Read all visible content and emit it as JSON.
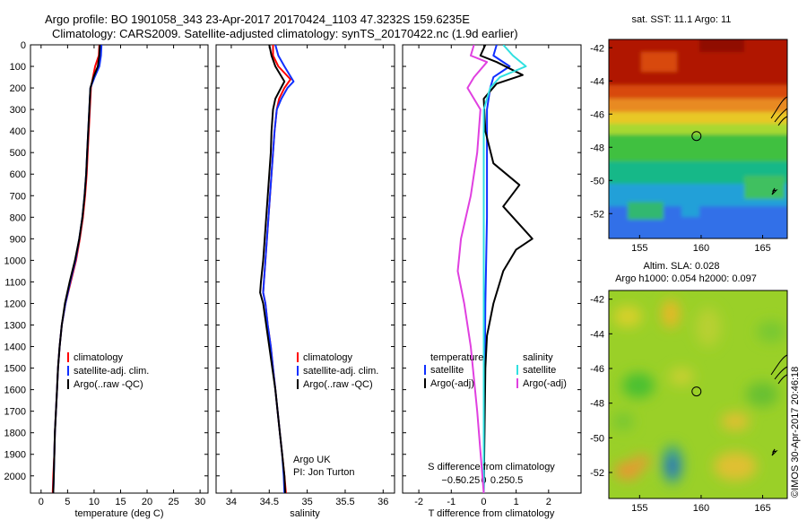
{
  "header": {
    "title_line1": "Argo profile: BO 1901058_343 23-Apr-2017 20170424_1103 47.3232S 159.6235E",
    "title_line2": "Climatology: CARS2009. Satellite-adjusted climatology: synTS_20170422.nc (1.9d earlier)"
  },
  "colors": {
    "climatology": "#ff0000",
    "satellite": "#1030ff",
    "argo": "#000000",
    "sat_salinity": "#30e0e0",
    "argo_salinity_adj": "#e040e0"
  },
  "depth_ticks": [
    0,
    100,
    200,
    300,
    400,
    500,
    600,
    700,
    800,
    900,
    1000,
    1100,
    1200,
    1300,
    1400,
    1500,
    1600,
    1700,
    1800,
    1900,
    2000
  ],
  "chart_data": [
    {
      "type": "line",
      "id": "temperature",
      "xlabel": "temperature (deg C)",
      "ylabel": "",
      "xlim": [
        -2,
        31.5
      ],
      "ylim": [
        0,
        2080
      ],
      "y_reversed": true,
      "xticks": [
        0,
        5,
        10,
        15,
        20,
        25,
        30
      ],
      "legend": {
        "position": "bottom-center",
        "entries": [
          "climatology",
          "satellite-adj. clim.",
          "Argo(..raw -QC)"
        ]
      },
      "series": [
        {
          "name": "climatology",
          "color_key": "climatology",
          "points": [
            [
              11,
              0
            ],
            [
              10.9,
              50
            ],
            [
              10.2,
              100
            ],
            [
              9.8,
              150
            ],
            [
              9.4,
              200
            ],
            [
              9.2,
              300
            ],
            [
              9.0,
              400
            ],
            [
              8.8,
              500
            ],
            [
              8.6,
              600
            ],
            [
              8.3,
              700
            ],
            [
              7.9,
              800
            ],
            [
              7.3,
              900
            ],
            [
              6.6,
              1000
            ],
            [
              5.6,
              1100
            ],
            [
              4.6,
              1200
            ],
            [
              3.9,
              1300
            ],
            [
              3.5,
              1400
            ],
            [
              3.2,
              1500
            ],
            [
              3.0,
              1600
            ],
            [
              2.8,
              1700
            ],
            [
              2.6,
              1800
            ],
            [
              2.5,
              1900
            ],
            [
              2.3,
              2000
            ],
            [
              2.2,
              2080
            ]
          ]
        },
        {
          "name": "satellite-adj. clim.",
          "color_key": "satellite",
          "points": [
            [
              11.4,
              0
            ],
            [
              11.3,
              50
            ],
            [
              11.0,
              100
            ],
            [
              10.1,
              150
            ],
            [
              9.3,
              200
            ],
            [
              9.1,
              300
            ],
            [
              8.9,
              400
            ],
            [
              8.7,
              500
            ],
            [
              8.5,
              600
            ],
            [
              8.2,
              700
            ],
            [
              7.8,
              800
            ],
            [
              7.2,
              900
            ],
            [
              6.5,
              1000
            ],
            [
              5.5,
              1100
            ],
            [
              4.6,
              1200
            ],
            [
              3.9,
              1300
            ],
            [
              3.5,
              1400
            ],
            [
              3.2,
              1500
            ],
            [
              3.0,
              1600
            ],
            [
              2.8,
              1700
            ],
            [
              2.6,
              1800
            ],
            [
              2.5,
              1900
            ],
            [
              2.4,
              2000
            ],
            [
              2.3,
              2080
            ]
          ]
        },
        {
          "name": "Argo(..raw -QC)",
          "color_key": "argo",
          "points": [
            [
              11.1,
              0
            ],
            [
              11.0,
              50
            ],
            [
              10.7,
              100
            ],
            [
              9.9,
              150
            ],
            [
              9.3,
              200
            ],
            [
              9.1,
              300
            ],
            [
              8.9,
              400
            ],
            [
              8.7,
              500
            ],
            [
              8.5,
              600
            ],
            [
              8.2,
              700
            ],
            [
              7.8,
              800
            ],
            [
              7.2,
              900
            ],
            [
              6.4,
              1000
            ],
            [
              5.4,
              1100
            ],
            [
              4.5,
              1200
            ],
            [
              3.9,
              1300
            ],
            [
              3.5,
              1400
            ],
            [
              3.2,
              1500
            ],
            [
              3.0,
              1600
            ],
            [
              2.8,
              1700
            ],
            [
              2.6,
              1800
            ],
            [
              2.5,
              1900
            ],
            [
              2.4,
              2000
            ],
            [
              2.3,
              2080
            ]
          ]
        }
      ]
    },
    {
      "type": "line",
      "id": "salinity",
      "xlabel": "salinity",
      "ylabel": "",
      "xlim": [
        33.8,
        36.15
      ],
      "ylim": [
        0,
        2080
      ],
      "y_reversed": true,
      "xticks": [
        34,
        34.5,
        35,
        35.5,
        36
      ],
      "legend": {
        "position": "bottom-center",
        "entries": [
          "climatology",
          "satellite-adj. clim.",
          "Argo(..raw -QC)"
        ]
      },
      "annotation_lines": [
        "Argo UK",
        "PI: Jon Turton"
      ],
      "series": [
        {
          "name": "climatology",
          "color_key": "climatology",
          "points": [
            [
              34.55,
              0
            ],
            [
              34.55,
              50
            ],
            [
              34.62,
              100
            ],
            [
              34.78,
              160
            ],
            [
              34.7,
              200
            ],
            [
              34.63,
              250
            ],
            [
              34.6,
              300
            ],
            [
              34.57,
              400
            ],
            [
              34.55,
              500
            ],
            [
              34.53,
              600
            ],
            [
              34.51,
              700
            ],
            [
              34.49,
              800
            ],
            [
              34.47,
              900
            ],
            [
              34.45,
              1000
            ],
            [
              34.43,
              1100
            ],
            [
              34.42,
              1150
            ],
            [
              34.45,
              1200
            ],
            [
              34.48,
              1300
            ],
            [
              34.52,
              1400
            ],
            [
              34.55,
              1500
            ],
            [
              34.58,
              1600
            ],
            [
              34.61,
              1700
            ],
            [
              34.64,
              1800
            ],
            [
              34.67,
              1900
            ],
            [
              34.7,
              2000
            ],
            [
              34.72,
              2080
            ]
          ]
        },
        {
          "name": "satellite-adj. clim.",
          "color_key": "satellite",
          "points": [
            [
              34.58,
              0
            ],
            [
              34.62,
              50
            ],
            [
              34.7,
              100
            ],
            [
              34.82,
              170
            ],
            [
              34.74,
              200
            ],
            [
              34.66,
              250
            ],
            [
              34.6,
              300
            ],
            [
              34.57,
              400
            ],
            [
              34.55,
              500
            ],
            [
              34.53,
              600
            ],
            [
              34.51,
              700
            ],
            [
              34.49,
              800
            ],
            [
              34.47,
              900
            ],
            [
              34.45,
              1000
            ],
            [
              34.43,
              1100
            ],
            [
              34.42,
              1150
            ],
            [
              34.45,
              1200
            ],
            [
              34.48,
              1300
            ],
            [
              34.52,
              1400
            ],
            [
              34.55,
              1500
            ],
            [
              34.58,
              1600
            ],
            [
              34.61,
              1700
            ],
            [
              34.64,
              1800
            ],
            [
              34.67,
              1900
            ],
            [
              34.69,
              2000
            ],
            [
              34.7,
              2080
            ]
          ]
        },
        {
          "name": "Argo(..raw -QC)",
          "color_key": "argo",
          "points": [
            [
              34.5,
              0
            ],
            [
              34.53,
              50
            ],
            [
              34.58,
              100
            ],
            [
              34.7,
              170
            ],
            [
              34.64,
              210
            ],
            [
              34.58,
              250
            ],
            [
              34.55,
              300
            ],
            [
              34.53,
              400
            ],
            [
              34.52,
              500
            ],
            [
              34.5,
              600
            ],
            [
              34.48,
              700
            ],
            [
              34.46,
              800
            ],
            [
              34.44,
              900
            ],
            [
              34.42,
              1000
            ],
            [
              34.39,
              1100
            ],
            [
              34.38,
              1150
            ],
            [
              34.42,
              1200
            ],
            [
              34.46,
              1300
            ],
            [
              34.5,
              1400
            ],
            [
              34.54,
              1500
            ],
            [
              34.58,
              1600
            ],
            [
              34.61,
              1700
            ],
            [
              34.64,
              1800
            ],
            [
              34.67,
              1900
            ],
            [
              34.7,
              2000
            ],
            [
              34.71,
              2080
            ]
          ]
        }
      ]
    },
    {
      "type": "line",
      "id": "difference",
      "xlabel": "T difference from climatology",
      "secondary_xlabel": "S difference from climatology",
      "ylabel": "",
      "xlim": [
        -2.5,
        3.0
      ],
      "ylim": [
        0,
        2080
      ],
      "y_reversed": true,
      "xticks": [
        -2,
        -1,
        0,
        1,
        2
      ],
      "xtick_labels": [
        "-2",
        "-1",
        "0",
        "1",
        "2"
      ],
      "secondary_xticks": [
        -1,
        -0.5,
        0,
        0.5,
        1
      ],
      "secondary_xtick_labels": [
        "−0.5",
        "−0.25",
        "0",
        "0.25",
        "0.5"
      ],
      "legend": {
        "position": "bottom",
        "groups": [
          {
            "title": "temperature",
            "entries": [
              "satellite",
              "Argo(-adj)"
            ]
          },
          {
            "title": "salinity",
            "entries": [
              "satellite",
              "Argo(-adj)"
            ]
          }
        ]
      },
      "series": [
        {
          "name": "temperature satellite",
          "color_key": "satellite",
          "points": [
            [
              0.4,
              0
            ],
            [
              0.3,
              50
            ],
            [
              0.8,
              100
            ],
            [
              0.3,
              150
            ],
            [
              0.2,
              200
            ],
            [
              0.1,
              300
            ],
            [
              0.1,
              500
            ],
            [
              0.1,
              800
            ],
            [
              0.05,
              1200
            ],
            [
              0,
              2080
            ]
          ]
        },
        {
          "name": "temperature Argo(-adj)",
          "color_key": "argo",
          "points": [
            [
              0.05,
              0
            ],
            [
              -0.1,
              50
            ],
            [
              0.4,
              80
            ],
            [
              1.2,
              140
            ],
            [
              0.4,
              180
            ],
            [
              0.0,
              250
            ],
            [
              0.05,
              400
            ],
            [
              0.3,
              550
            ],
            [
              1.1,
              650
            ],
            [
              0.6,
              750
            ],
            [
              1.2,
              850
            ],
            [
              1.5,
              900
            ],
            [
              1.0,
              950
            ],
            [
              0.6,
              1050
            ],
            [
              0.3,
              1200
            ],
            [
              0.1,
              1350
            ],
            [
              0.05,
              1500
            ],
            [
              0,
              2080
            ]
          ]
        },
        {
          "name": "salinity satellite",
          "color_key": "sat_salinity",
          "points": [
            [
              0.6,
              0
            ],
            [
              0.9,
              50
            ],
            [
              1.3,
              100
            ],
            [
              0.5,
              150
            ],
            [
              0.2,
              200
            ],
            [
              0.0,
              300
            ],
            [
              0.0,
              600
            ],
            [
              0.0,
              1200
            ],
            [
              0.0,
              2080
            ]
          ]
        },
        {
          "name": "salinity Argo(-adj)",
          "color_key": "argo_salinity_adj",
          "points": [
            [
              -0.3,
              0
            ],
            [
              -0.4,
              50
            ],
            [
              0.1,
              80
            ],
            [
              -0.3,
              150
            ],
            [
              -0.5,
              200
            ],
            [
              -0.1,
              300
            ],
            [
              -0.2,
              500
            ],
            [
              -0.4,
              700
            ],
            [
              -0.7,
              900
            ],
            [
              -0.8,
              1050
            ],
            [
              -0.6,
              1200
            ],
            [
              -0.4,
              1400
            ],
            [
              -0.2,
              1700
            ],
            [
              0.0,
              2080
            ]
          ]
        }
      ]
    },
    {
      "type": "heatmap",
      "id": "sst-map",
      "title": "sat. SST: 11.1  Argo: 11",
      "xticks": [
        155,
        160,
        165
      ],
      "yticks": [
        -42,
        -44,
        -46,
        -48,
        -50,
        -52
      ],
      "xlim": [
        152.5,
        167
      ],
      "ylim": [
        -53.5,
        -41.5
      ],
      "marker": {
        "lon": 159.6235,
        "lat": -47.3232
      }
    },
    {
      "type": "heatmap",
      "id": "sla-map",
      "title_line1": "Altim. SLA: 0.028",
      "title_line2": "Argo h1000: 0.054 h2000: 0.097",
      "xticks": [
        155,
        160,
        165
      ],
      "yticks": [
        -42,
        -44,
        -46,
        -48,
        -50,
        -52
      ],
      "xlim": [
        152.5,
        167
      ],
      "ylim": [
        -53.5,
        -41.5
      ],
      "marker": {
        "lon": 159.6235,
        "lat": -47.3232
      }
    }
  ],
  "footer": {
    "credit": "©IMOS 30-Apr-2017 20:46:18"
  }
}
